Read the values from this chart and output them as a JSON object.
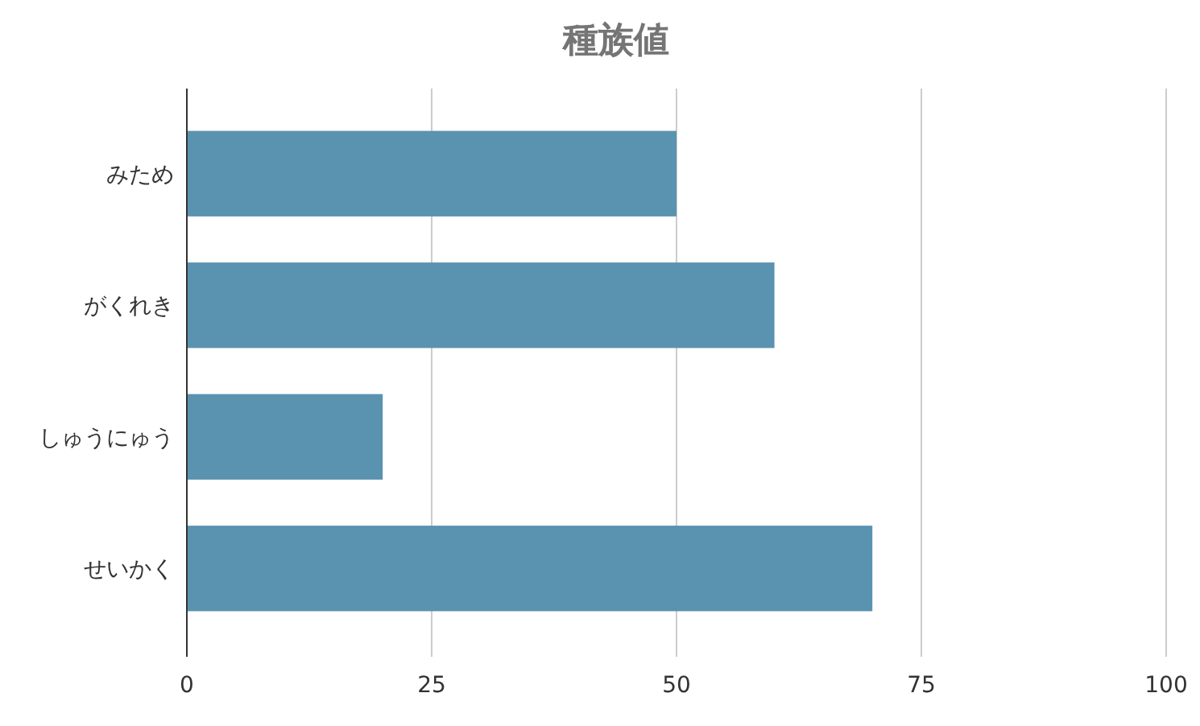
{
  "chart_data": {
    "type": "bar",
    "orientation": "horizontal",
    "title": "種族値",
    "categories": [
      "みため",
      "がくれき",
      "しゅうにゅう",
      "せいかく"
    ],
    "values": [
      50,
      60,
      20,
      70
    ],
    "color": "#5a93b0",
    "xlim": [
      0,
      100
    ],
    "xticks": [
      0,
      25,
      50,
      75,
      100
    ],
    "grid": "x"
  }
}
